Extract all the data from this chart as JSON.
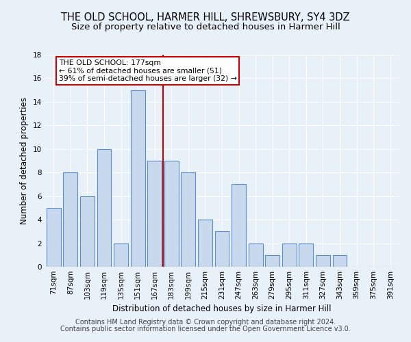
{
  "title": "THE OLD SCHOOL, HARMER HILL, SHREWSBURY, SY4 3DZ",
  "subtitle": "Size of property relative to detached houses in Harmer Hill",
  "xlabel": "Distribution of detached houses by size in Harmer Hill",
  "ylabel": "Number of detached properties",
  "categories": [
    "71sqm",
    "87sqm",
    "103sqm",
    "119sqm",
    "135sqm",
    "151sqm",
    "167sqm",
    "183sqm",
    "199sqm",
    "215sqm",
    "231sqm",
    "247sqm",
    "263sqm",
    "279sqm",
    "295sqm",
    "311sqm",
    "327sqm",
    "343sqm",
    "359sqm",
    "375sqm",
    "391sqm"
  ],
  "values": [
    5,
    8,
    6,
    10,
    2,
    15,
    9,
    9,
    8,
    4,
    3,
    7,
    2,
    1,
    2,
    2,
    1,
    1,
    0,
    0,
    0
  ],
  "bar_color": "#c8d9ed",
  "bar_edge_color": "#5b8fc9",
  "vline_color": "#cc0000",
  "annotation_text": "THE OLD SCHOOL: 177sqm\n← 61% of detached houses are smaller (51)\n39% of semi-detached houses are larger (32) →",
  "annotation_box_color": "#ffffff",
  "annotation_box_edge_color": "#cc0000",
  "ylim": [
    0,
    18
  ],
  "yticks": [
    0,
    2,
    4,
    6,
    8,
    10,
    12,
    14,
    16,
    18
  ],
  "footer1": "Contains HM Land Registry data © Crown copyright and database right 2024.",
  "footer2": "Contains public sector information licensed under the Open Government Licence v3.0.",
  "background_color": "#e8f0f8",
  "plot_bg_color": "#e8f0f8",
  "title_fontsize": 10.5,
  "subtitle_fontsize": 9.5,
  "xlabel_fontsize": 8.5,
  "ylabel_fontsize": 8.5,
  "tick_fontsize": 7.5,
  "annotation_fontsize": 7.8,
  "footer_fontsize": 7.0
}
